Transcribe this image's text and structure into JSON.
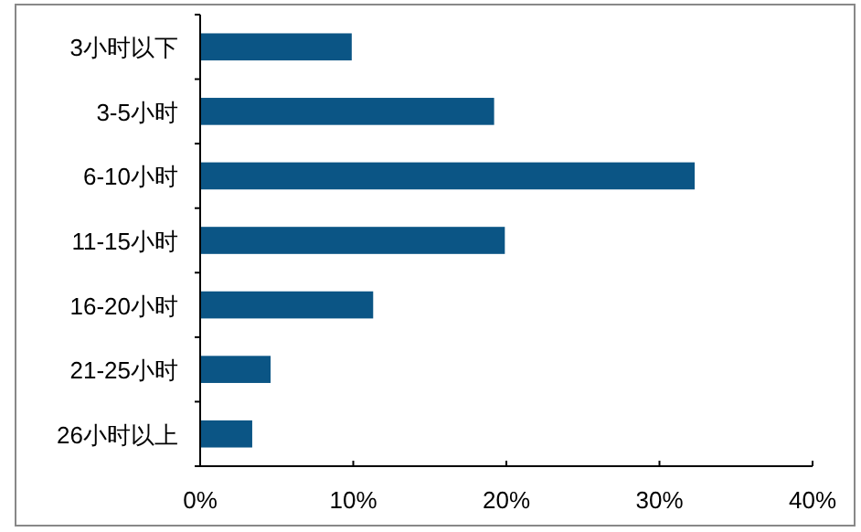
{
  "chart_data": {
    "type": "bar",
    "orientation": "horizontal",
    "categories": [
      "3小时以下",
      "3-5小时",
      "6-10小时",
      "11-15小时",
      "16-20小时",
      "21-25小时",
      "26小时以上"
    ],
    "values": [
      9.9,
      19.2,
      32.3,
      19.9,
      11.3,
      4.6,
      3.4
    ],
    "color": "#0b5585",
    "xlim": [
      0,
      40
    ],
    "xticks": [
      {
        "value": 0,
        "label": "0%"
      },
      {
        "value": 10,
        "label": "10%"
      },
      {
        "value": 20,
        "label": "20%"
      },
      {
        "value": 30,
        "label": "30%"
      },
      {
        "value": 40,
        "label": "40%"
      }
    ],
    "grid": false
  }
}
